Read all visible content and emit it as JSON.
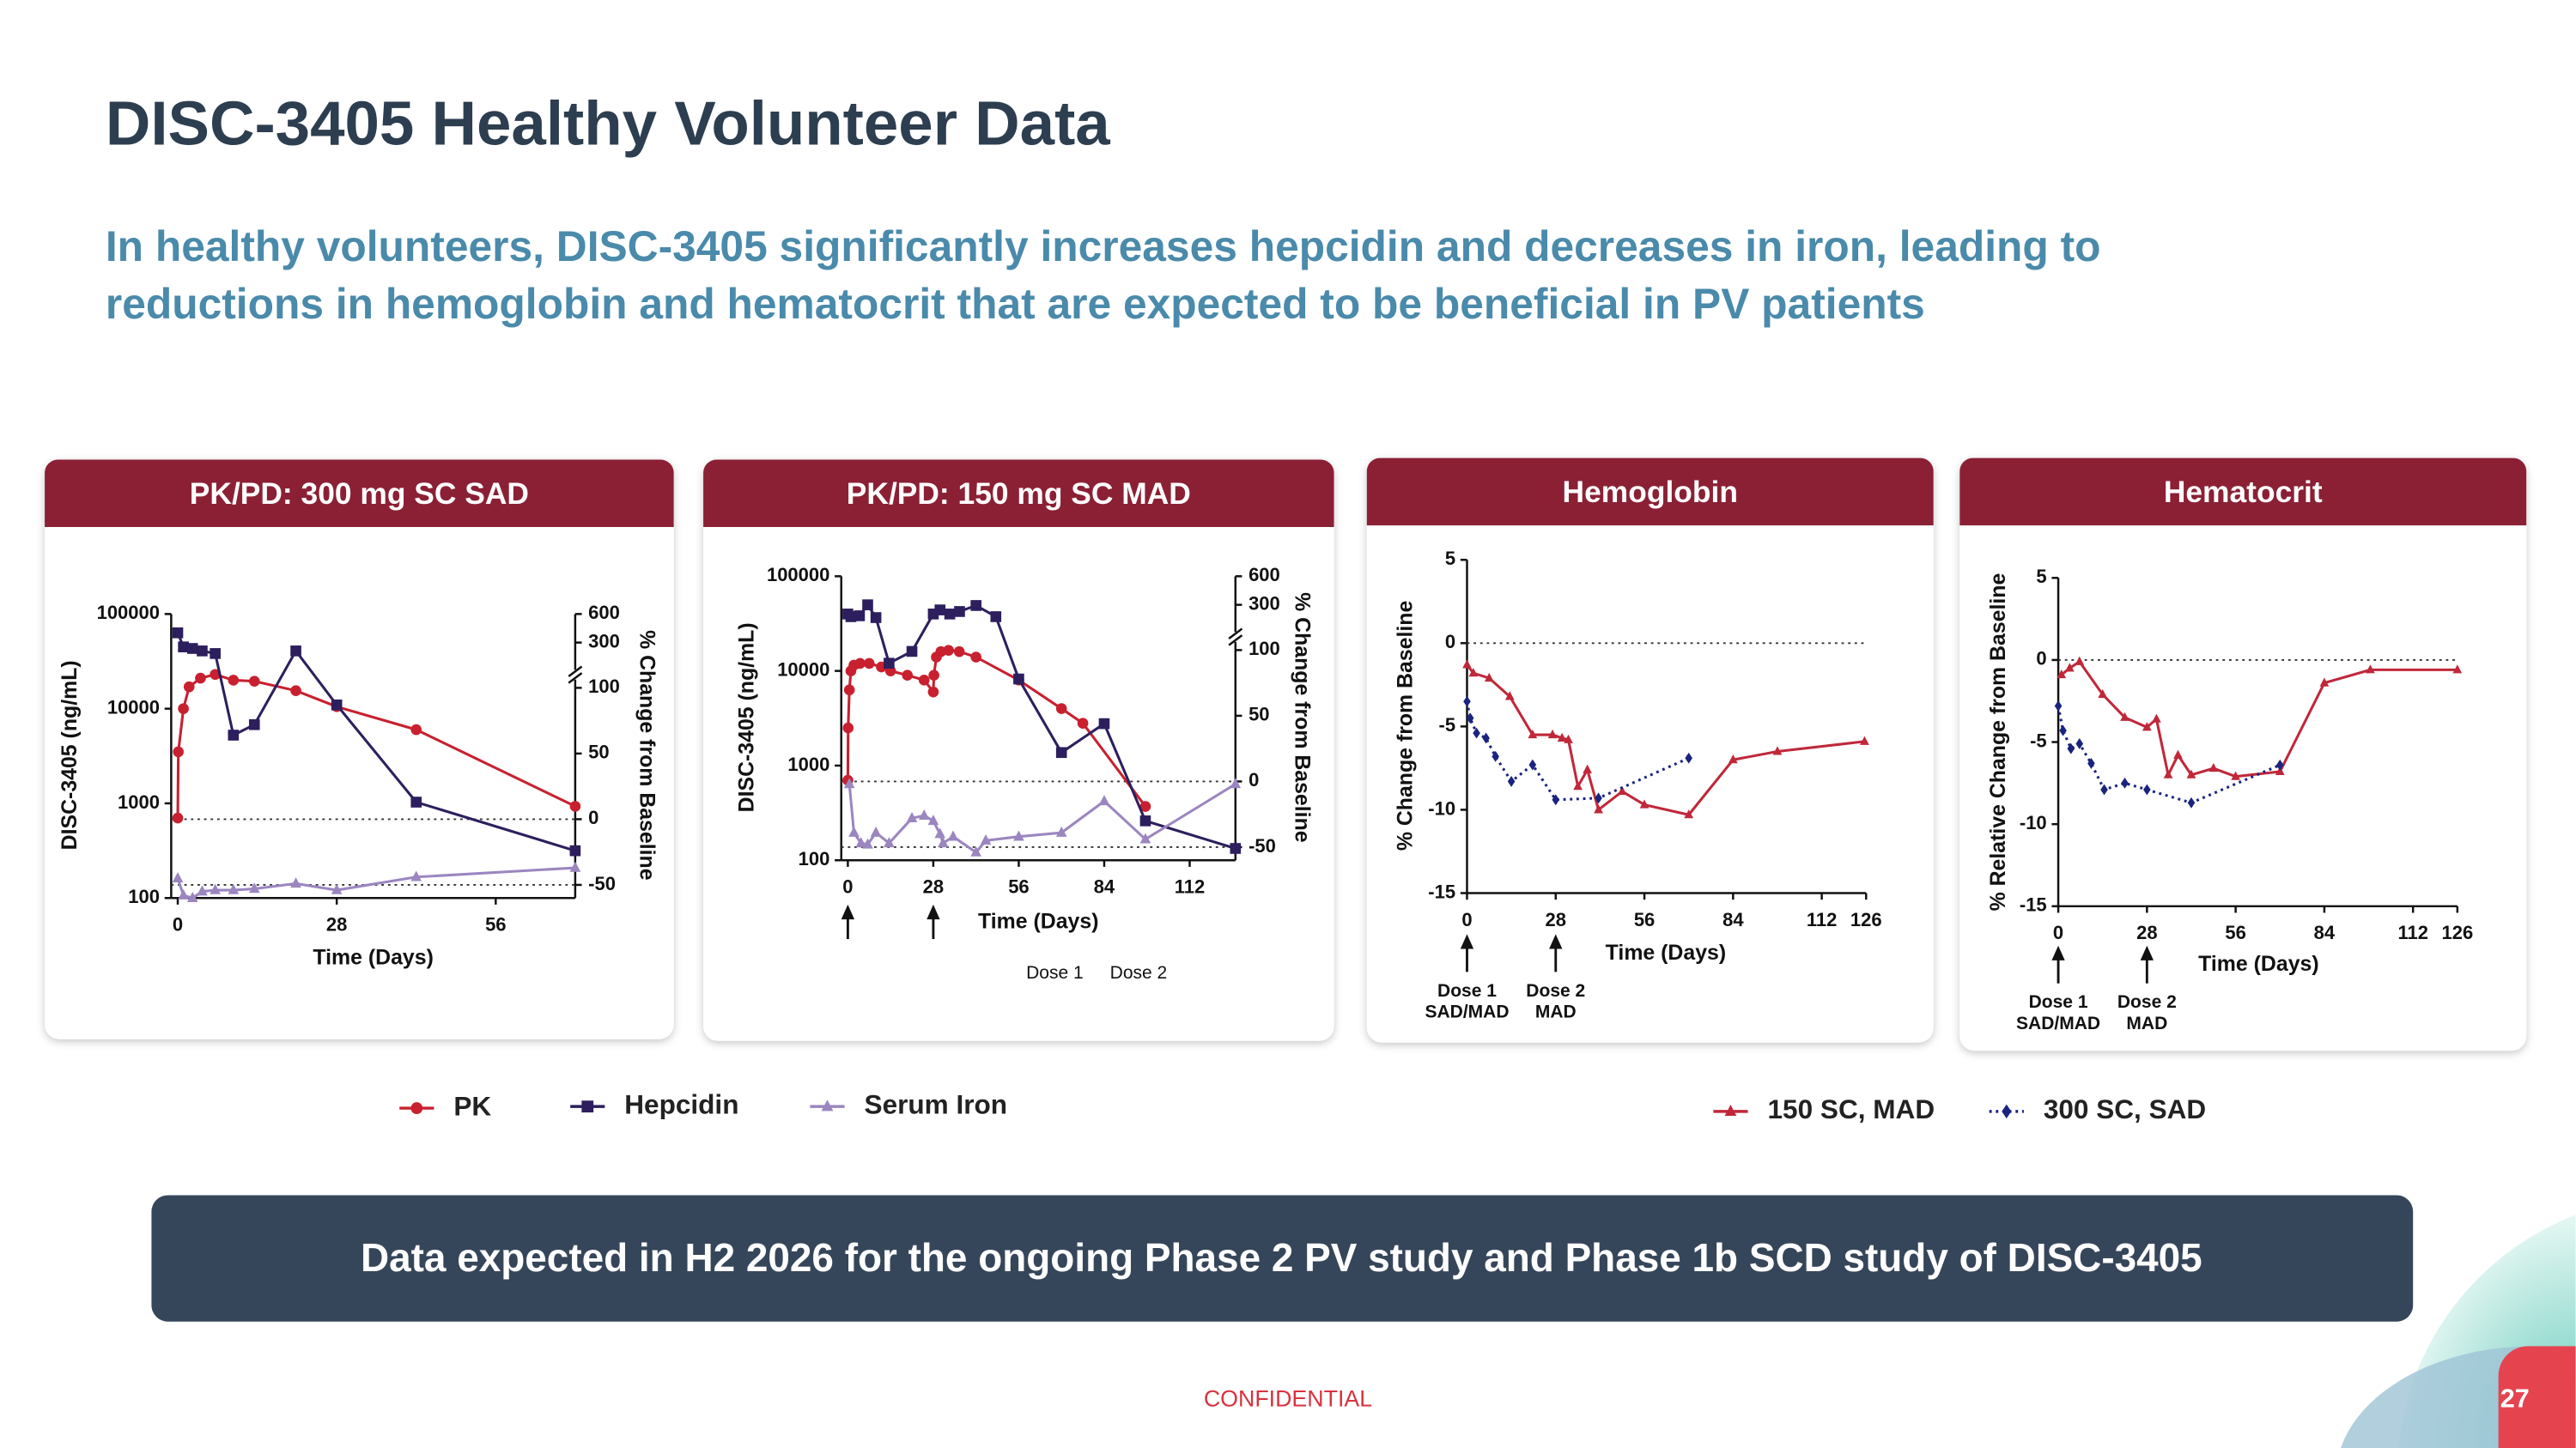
{
  "header": {
    "title": "DISC-3405 Healthy Volunteer Data",
    "subtitle": [
      "In healthy volunteers, DISC-3405 significantly increases hepcidin and decreases in iron, leading to",
      "reductions in hemoglobin and hematocrit that are expected to be beneficial in PV patients"
    ]
  },
  "banner": "Data expected in H2 2026 for the ongoing Phase 2 PV study and Phase 1b SCD study of DISC-3405",
  "footer": {
    "confidential": "CONFIDENTIAL",
    "page": 27
  },
  "chart_data": [
    {
      "type": "line",
      "title": "PK/PD: 300 mg SC SAD",
      "xlabel": "Time (Days)",
      "ylabel": "DISC-3405 (ng/mL)",
      "y2label": "% Change from Baseline",
      "xlim": [
        0,
        70
      ],
      "xticks": [
        0,
        28,
        56
      ],
      "ylim": [
        100,
        100000
      ],
      "yticks": [
        100,
        1000,
        10000,
        100000
      ],
      "log_y": true,
      "y2lim": [
        -60,
        600
      ],
      "y2ticks": [
        -50,
        0,
        50,
        100,
        300,
        600
      ],
      "y2break": 100,
      "reference_lines": [
        {
          "value": 0,
          "axis": "y2"
        },
        {
          "value": -50,
          "axis": "y2"
        }
      ],
      "series": [
        {
          "name": "PK",
          "color": "#c8202f",
          "marker": "circle",
          "x": [
            0,
            0.1,
            1,
            2,
            4,
            6.6,
            9.8,
            13.5,
            20.8,
            28,
            42,
            70
          ],
          "values": [
            700,
            3500,
            10000,
            17000,
            21000,
            23000,
            20000,
            19500,
            15500,
            10500,
            6000,
            930
          ]
        },
        {
          "name": "Hepcidin",
          "color": "#2d1f5e",
          "marker": "square",
          "axis": "y2",
          "x": [
            0,
            1,
            2.6,
            4.3,
            6.6,
            9.8,
            13.5,
            20.8,
            28,
            42,
            70
          ],
          "values": [
            380,
            270,
            260,
            245,
            230,
            64,
            72,
            245,
            87,
            13,
            -24
          ]
        },
        {
          "name": "Serum Iron",
          "color": "#9b86c0",
          "marker": "triangle",
          "axis": "y2",
          "x": [
            0,
            1,
            2.6,
            4.3,
            6.6,
            9.8,
            13.5,
            20.8,
            28,
            42,
            70
          ],
          "values": [
            -45,
            -58,
            -60,
            -55,
            -54,
            -54,
            -53,
            -49,
            -54,
            -44,
            -37
          ]
        }
      ]
    },
    {
      "type": "line",
      "title": "PK/PD: 150 mg SC MAD",
      "xlabel": "Time (Days)",
      "ylabel": "DISC-3405 (ng/mL)",
      "y2label": "% Change from Baseline",
      "xlim": [
        0,
        127
      ],
      "xticks": [
        0,
        28,
        56,
        84,
        112
      ],
      "ylim": [
        100,
        100000
      ],
      "yticks": [
        100,
        1000,
        10000,
        100000
      ],
      "log_y": true,
      "y2lim": [
        -60,
        600
      ],
      "y2ticks": [
        -50,
        0,
        50,
        100,
        300,
        600
      ],
      "y2break": 100,
      "reference_lines": [
        {
          "value": 0,
          "axis": "y2"
        },
        {
          "value": -50,
          "axis": "y2"
        }
      ],
      "annotations": [
        {
          "x": 0,
          "text": [
            "Dose 1"
          ]
        },
        {
          "x": 28,
          "text": [
            "Dose 2"
          ]
        }
      ],
      "series": [
        {
          "color": "#c8202f",
          "marker": "circle",
          "x": [
            0,
            0.1,
            0.5,
            1,
            2,
            4,
            7,
            11,
            14,
            19.5,
            25,
            28,
            28.2,
            29,
            30.5,
            33,
            36.5,
            42,
            56,
            70,
            77,
            97.5
          ],
          "values": [
            700,
            2500,
            6300,
            10000,
            11500,
            12000,
            12000,
            11000,
            10000,
            9000,
            8000,
            6000,
            9000,
            14000,
            16000,
            16500,
            16000,
            14000,
            8000,
            4000,
            2800,
            370
          ]
        },
        {
          "color": "#2d1f5e",
          "marker": "square",
          "axis": "y2",
          "x": [
            0,
            1,
            3.8,
            6.5,
            9.2,
            13.5,
            21,
            28,
            30.2,
            33.4,
            36.6,
            42,
            48.5,
            56,
            70,
            84,
            97.5,
            127
          ],
          "values": [
            240,
            225,
            230,
            300,
            220,
            90,
            99,
            240,
            265,
            240,
            255,
            295,
            225,
            78,
            22,
            44,
            -30,
            -51
          ]
        },
        {
          "color": "#9b86c0",
          "marker": "triangle",
          "axis": "y2",
          "x": [
            0.5,
            2,
            4.3,
            6.5,
            9.2,
            13.5,
            21,
            25,
            28,
            30.2,
            31.2,
            34.5,
            42,
            45.2,
            56,
            70,
            84,
            97.5,
            127
          ],
          "values": [
            -2,
            -39,
            -47,
            -48,
            -39,
            -47,
            -28,
            -26,
            -30,
            -40,
            -47,
            -42,
            -54,
            -45,
            -42,
            -39,
            -15,
            -44,
            -2
          ]
        }
      ]
    },
    {
      "type": "line",
      "title": "Hemoglobin",
      "xlabel": "Time (Days)",
      "ylabel": "% Change from Baseline",
      "xlim": [
        0,
        126
      ],
      "xticks": [
        0,
        28,
        56,
        84,
        112,
        126
      ],
      "ylim": [
        -15,
        5
      ],
      "yticks": [
        -15,
        -10,
        -5,
        0,
        5
      ],
      "reference_lines": [
        {
          "value": 0,
          "axis": "y"
        }
      ],
      "annotations": [
        {
          "x": 0,
          "text": [
            "Dose 1",
            "SAD/MAD"
          ]
        },
        {
          "x": 28,
          "text": [
            "Dose 2",
            "MAD"
          ]
        }
      ],
      "series": [
        {
          "name": "150 SC, MAD",
          "color": "#c0283a",
          "marker": "triangle",
          "x": [
            0,
            2,
            7,
            13.5,
            20.7,
            27,
            30,
            32,
            35,
            38,
            41.5,
            49,
            56,
            70,
            84,
            98,
            125.5
          ],
          "values": [
            -1.3,
            -1.8,
            -2.1,
            -3.2,
            -5.5,
            -5.5,
            -5.7,
            -5.8,
            -8.6,
            -7.6,
            -10,
            -8.9,
            -9.7,
            -10.3,
            -7,
            -6.5,
            -5.9
          ]
        },
        {
          "name": "300 SC, SAD",
          "color": "#1a237e",
          "marker": "diamond",
          "dash": "dotted",
          "x": [
            0,
            1,
            3,
            6,
            9,
            14,
            20.7,
            28,
            41.5,
            70
          ],
          "values": [
            -3.5,
            -4.5,
            -5.4,
            -5.7,
            -6.8,
            -8.3,
            -7.3,
            -9.4,
            -9.3,
            -6.9
          ]
        }
      ]
    },
    {
      "type": "line",
      "title": "Hematocrit",
      "xlabel": "Time (Days)",
      "ylabel": "% Relative Change from Baseline",
      "xlim": [
        0,
        126
      ],
      "xticks": [
        0,
        28,
        56,
        84,
        112,
        126
      ],
      "ylim": [
        -15,
        5
      ],
      "yticks": [
        -15,
        -10,
        -5,
        0,
        5
      ],
      "reference_lines": [
        {
          "value": 0,
          "axis": "y"
        }
      ],
      "annotations": [
        {
          "x": 0,
          "text": [
            "Dose 1",
            "SAD/MAD"
          ]
        },
        {
          "x": 28,
          "text": [
            "Dose 2",
            "MAD"
          ]
        }
      ],
      "series": [
        {
          "color": "#c0283a",
          "marker": "triangle",
          "x": [
            1,
            3.6,
            6.7,
            14,
            21,
            28,
            31,
            34.7,
            37.8,
            42,
            49,
            56,
            70,
            84,
            98.5,
            126
          ],
          "values": [
            -0.9,
            -0.5,
            -0.1,
            -2.1,
            -3.5,
            -4.1,
            -3.6,
            -7,
            -5.8,
            -7,
            -6.6,
            -7.1,
            -6.8,
            -1.4,
            -0.6,
            -0.6
          ]
        },
        {
          "color": "#1a237e",
          "marker": "diamond",
          "dash": "dotted",
          "x": [
            0,
            1.5,
            4,
            6.7,
            10.4,
            14.5,
            21,
            28,
            42,
            70
          ],
          "values": [
            -2.8,
            -4.3,
            -5.4,
            -5.1,
            -6.3,
            -7.9,
            -7.5,
            -7.9,
            -8.7,
            -6.4
          ]
        }
      ]
    }
  ]
}
